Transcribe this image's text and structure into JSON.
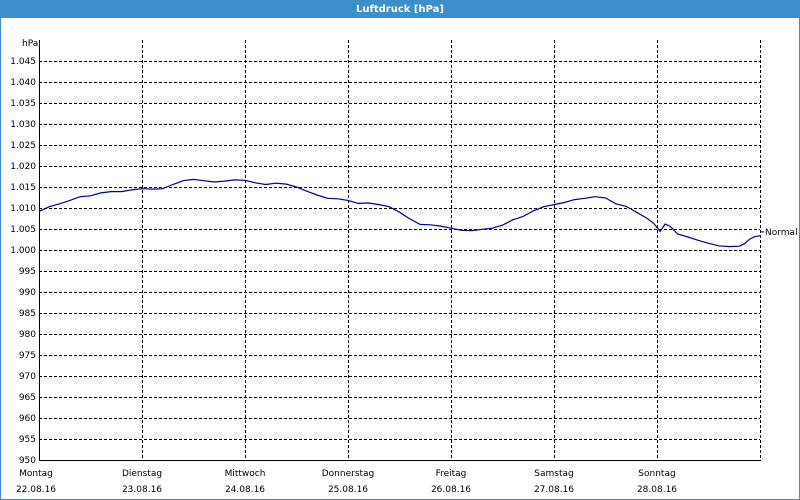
{
  "window": {
    "title": "Luftdruck [hPa]"
  },
  "colors": {
    "titlebar": "#3c8fc8",
    "series": "#00008b",
    "grid": "#000000"
  },
  "chart_data": {
    "type": "line",
    "title": "Luftdruck [hPa]",
    "ylabel": "hPa",
    "ylim": [
      950,
      1050
    ],
    "yticks": [
      950,
      955,
      960,
      965,
      970,
      975,
      980,
      985,
      990,
      995,
      1000,
      1005,
      1010,
      1015,
      1020,
      1025,
      1030,
      1035,
      1040,
      1045
    ],
    "ytick_labels": [
      "950",
      "955",
      "960",
      "965",
      "970",
      "975",
      "980",
      "985",
      "990",
      "995",
      "1.000",
      "1.005",
      "1.010",
      "1.015",
      "1.020",
      "1.025",
      "1.030",
      "1.035",
      "1.040",
      "1.045"
    ],
    "xlim": [
      0,
      7
    ],
    "x_ticks": [
      {
        "pos": 0,
        "day": "Montag",
        "date": "22.08.16"
      },
      {
        "pos": 1,
        "day": "Dienstag",
        "date": "23.08.16"
      },
      {
        "pos": 2,
        "day": "Mittwoch",
        "date": "24.08.16"
      },
      {
        "pos": 3,
        "day": "Donnerstag",
        "date": "25.08.16"
      },
      {
        "pos": 4,
        "day": "Freitag",
        "date": "26.08.16"
      },
      {
        "pos": 5,
        "day": "Samstag",
        "date": "27.08.16"
      },
      {
        "pos": 6,
        "day": "Sonntag",
        "date": "28.08.16"
      }
    ],
    "grid": true,
    "series": [
      {
        "x": [
          0,
          0.1,
          0.2,
          0.3,
          0.4,
          0.5,
          0.6,
          0.7,
          0.8,
          0.9,
          1.0,
          1.1,
          1.2,
          1.3,
          1.4,
          1.5,
          1.6,
          1.7,
          1.8,
          1.9,
          2.0,
          2.1,
          2.2,
          2.3,
          2.4,
          2.5,
          2.6,
          2.7,
          2.8,
          2.9,
          3.0,
          3.1,
          3.2,
          3.3,
          3.4,
          3.5,
          3.6,
          3.7,
          3.8,
          3.9,
          4.0,
          4.1,
          4.2,
          4.3,
          4.4,
          4.5,
          4.6,
          4.7,
          4.8,
          4.9,
          5.0,
          5.1,
          5.2,
          5.3,
          5.4,
          5.5,
          5.6,
          5.7,
          5.8,
          5.9,
          5.97,
          6.03,
          6.08,
          6.13,
          6.2,
          6.3,
          6.4,
          6.5,
          6.6,
          6.7,
          6.8,
          6.85,
          6.9,
          6.95,
          7.0
        ],
        "y": [
          1009.2,
          1010.3,
          1011.0,
          1011.8,
          1012.7,
          1012.9,
          1013.6,
          1013.9,
          1013.9,
          1014.3,
          1014.6,
          1014.5,
          1014.6,
          1015.6,
          1016.5,
          1016.8,
          1016.5,
          1016.2,
          1016.4,
          1016.7,
          1016.6,
          1016.0,
          1015.6,
          1015.9,
          1015.7,
          1015.0,
          1014.0,
          1013.1,
          1012.3,
          1012.2,
          1011.8,
          1011.1,
          1011.2,
          1010.8,
          1010.3,
          1009.0,
          1007.4,
          1006.1,
          1006.0,
          1005.7,
          1005.2,
          1004.7,
          1004.6,
          1004.9,
          1005.2,
          1005.9,
          1007.2,
          1008.0,
          1009.3,
          1010.3,
          1010.8,
          1011.3,
          1012.0,
          1012.3,
          1012.7,
          1012.4,
          1011.0,
          1010.4,
          1009.0,
          1007.6,
          1006.3,
          1004.4,
          1006.2,
          1005.6,
          1003.8,
          1003.1,
          1002.3,
          1001.6,
          1001.0,
          1000.8,
          1000.9,
          1001.5,
          1002.6,
          1003.2,
          1003.4
        ]
      }
    ],
    "annotations": [
      {
        "text": "Normal",
        "y": 1004.3
      }
    ]
  }
}
